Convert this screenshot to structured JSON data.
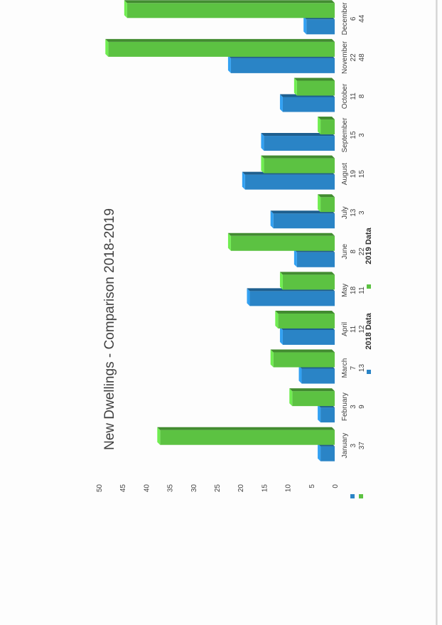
{
  "chart_data": {
    "type": "bar",
    "title": "New Dwellings - Comparison 2018-2019",
    "categories": [
      "January",
      "February",
      "March",
      "April",
      "May",
      "June",
      "July",
      "August",
      "September",
      "October",
      "November",
      "December"
    ],
    "series": [
      {
        "name": "2018 Data",
        "color": "#2a84c6",
        "values": [
          3,
          3,
          7,
          11,
          18,
          8,
          13,
          19,
          15,
          11,
          22,
          6
        ]
      },
      {
        "name": "2019 Data",
        "color": "#5cc242",
        "values": [
          37,
          9,
          13,
          12,
          11,
          22,
          3,
          15,
          3,
          8,
          48,
          44
        ]
      }
    ],
    "ylim": [
      0,
      50
    ],
    "yticks": [
      0,
      5,
      10,
      15,
      20,
      25,
      30,
      35,
      40,
      45,
      50
    ],
    "grid": false,
    "legend": "bottom",
    "orientation": "page rotated 90 degrees"
  }
}
